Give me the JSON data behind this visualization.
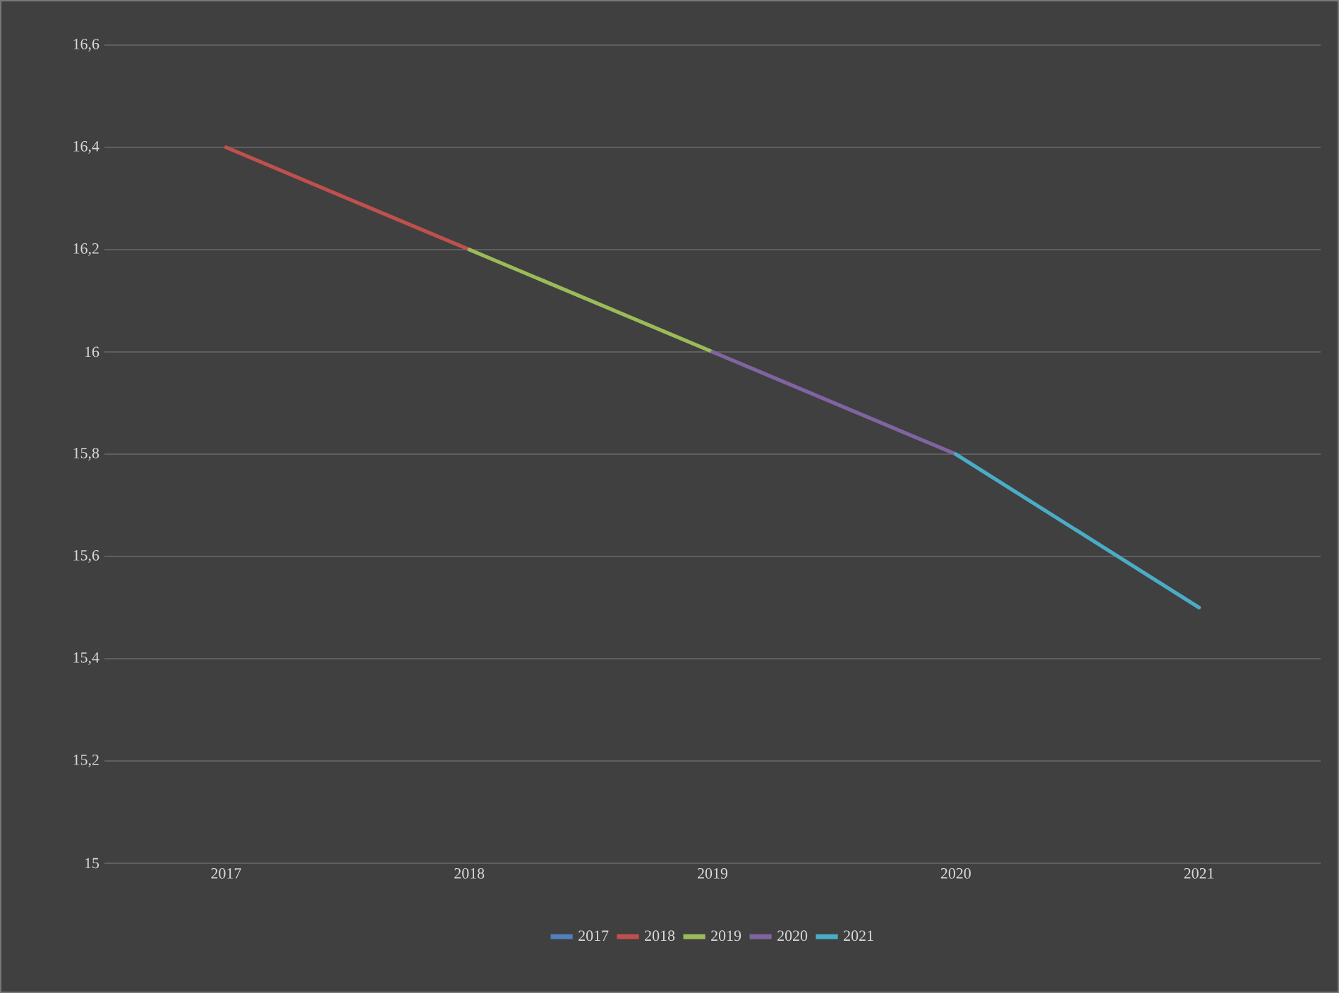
{
  "chart_data": {
    "type": "line",
    "categories": [
      "2017",
      "2018",
      "2019",
      "2020",
      "2021"
    ],
    "series": [
      {
        "name": "2017",
        "color": "#4f81bd",
        "values": [
          null,
          null,
          null,
          null,
          null
        ]
      },
      {
        "name": "2018",
        "color": "#c0504d",
        "values": [
          16.4,
          16.2,
          null,
          null,
          null
        ]
      },
      {
        "name": "2019",
        "color": "#9bbb59",
        "values": [
          null,
          16.2,
          16.0,
          null,
          null
        ]
      },
      {
        "name": "2020",
        "color": "#8064a2",
        "values": [
          null,
          null,
          16.0,
          15.8,
          null
        ]
      },
      {
        "name": "2021",
        "color": "#4bacc6",
        "values": [
          null,
          null,
          null,
          15.8,
          15.5
        ]
      }
    ],
    "ylim": [
      15,
      16.6
    ],
    "yticks": [
      15,
      {
        "value": 15.2,
        "label": "15,2"
      },
      {
        "value": 15.4,
        "label": "15,4"
      },
      {
        "value": 15.6,
        "label": "15,6"
      },
      {
        "value": 15.8,
        "label": "15,8"
      },
      16,
      {
        "value": 16.2,
        "label": "16,2"
      },
      {
        "value": 16.4,
        "label": "16,4"
      },
      {
        "value": 16.6,
        "label": "16,6"
      }
    ],
    "grid": "y",
    "legend": "bottom",
    "line_style": "solid"
  }
}
